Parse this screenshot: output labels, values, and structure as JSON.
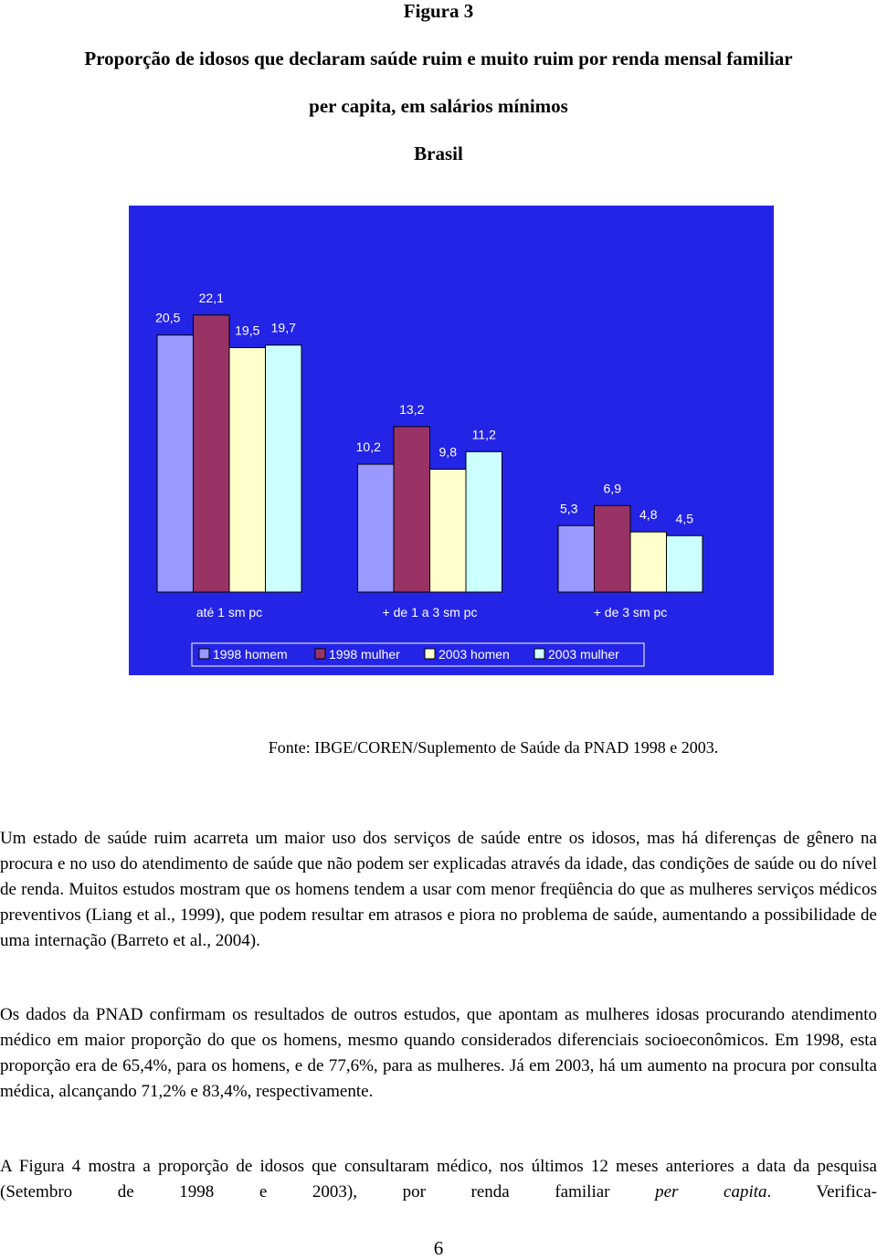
{
  "figure_label": "Figura 3",
  "title_lines": [
    "Proporção de idosos que declaram saúde ruim e muito ruim por renda mensal familiar",
    "per capita, em salários mínimos",
    "Brasil"
  ],
  "chart_data": {
    "type": "bar",
    "categories": [
      "até 1 sm pc",
      "+ de 1 a 3 sm pc",
      "+ de 3 sm pc"
    ],
    "background": "#2424e6",
    "series": [
      {
        "name": "1998 homem",
        "color": "#9999ff",
        "values": [
          20.5,
          10.2,
          5.3
        ],
        "value_labels": [
          "20,5",
          "10,2",
          "5,3"
        ]
      },
      {
        "name": "1998 mulher",
        "color": "#993366",
        "values": [
          22.1,
          13.2,
          6.9
        ],
        "value_labels": [
          "22,1",
          "13,2",
          "6,9"
        ]
      },
      {
        "name": "2003 homen",
        "color": "#ffffcc",
        "values": [
          19.5,
          9.8,
          4.8
        ],
        "value_labels": [
          "19,5",
          "9,8",
          "4,8"
        ]
      },
      {
        "name": "2003 mulher",
        "color": "#ccffff",
        "values": [
          19.7,
          11.2,
          4.5
        ],
        "value_labels": [
          "19,7",
          "11,2",
          "4,5"
        ]
      }
    ]
  },
  "source": "Fonte: IBGE/COREN/Suplemento de Saúde da PNAD 1998 e 2003.",
  "paragraphs": [
    "Um estado de saúde ruim acarreta um maior uso dos serviços de saúde entre os idosos, mas há diferenças de gênero na procura e no uso do atendimento de saúde que não podem ser explicadas através da idade, das condições de saúde ou do nível de renda. Muitos estudos mostram que os homens tendem a usar com menor freqüência do que as mulheres serviços médicos preventivos (Liang et al., 1999), que podem resultar em atrasos e piora no problema de saúde, aumentando a possibilidade de uma internação (Barreto et al., 2004).",
    "Os dados da PNAD confirmam os resultados de outros estudos, que apontam as mulheres idosas procurando atendimento médico em maior proporção do que os homens, mesmo quando considerados diferenciais socioeconômicos. Em 1998, esta proporção era de 65,4%, para os homens, e de 77,6%, para as mulheres. Já em 2003, há um aumento na procura por consulta médica, alcançando 71,2% e 83,4%, respectivamente.",
    [
      "A Figura 4 mostra a proporção de idosos que consultaram médico, nos últimos 12 meses anteriores a data da pesquisa (Setembro de 1998 e 2003), por renda familiar ",
      "per capita",
      ". Verifica-"
    ]
  ],
  "page_number": "6"
}
